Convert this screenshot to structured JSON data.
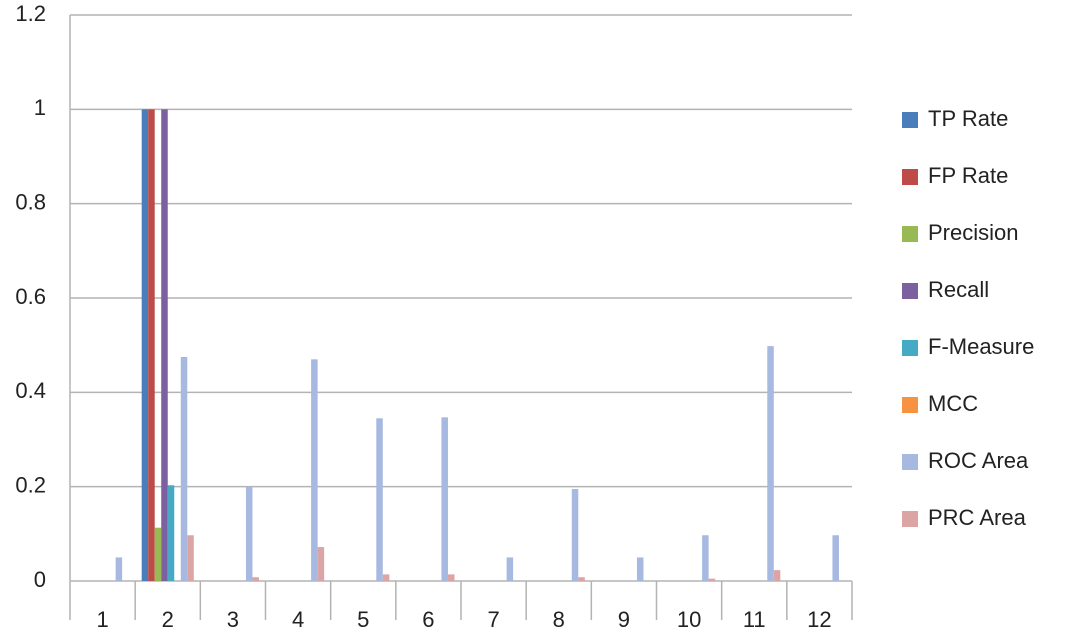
{
  "chart_data": {
    "type": "bar",
    "categories": [
      "1",
      "2",
      "3",
      "4",
      "5",
      "6",
      "7",
      "8",
      "9",
      "10",
      "11",
      "12"
    ],
    "series": [
      {
        "name": "TP Rate",
        "color": "#4a7ebb",
        "values": [
          0,
          1,
          0,
          0,
          0,
          0,
          0,
          0,
          0,
          0,
          0,
          0
        ]
      },
      {
        "name": "FP Rate",
        "color": "#be4b48",
        "values": [
          0,
          1,
          0,
          0,
          0,
          0,
          0,
          0,
          0,
          0,
          0,
          0
        ]
      },
      {
        "name": "Precision",
        "color": "#98b954",
        "values": [
          0,
          0.113,
          0,
          0,
          0,
          0,
          0,
          0,
          0,
          0,
          0,
          0
        ]
      },
      {
        "name": "Recall",
        "color": "#7d60a0",
        "values": [
          0,
          1,
          0,
          0,
          0,
          0,
          0,
          0,
          0,
          0,
          0,
          0
        ]
      },
      {
        "name": "F-Measure",
        "color": "#46aac5",
        "values": [
          0,
          0.203,
          0,
          0,
          0,
          0,
          0,
          0,
          0,
          0,
          0,
          0
        ]
      },
      {
        "name": "MCC",
        "color": "#f69240",
        "values": [
          0,
          0,
          0,
          0,
          0,
          0,
          0,
          0,
          0,
          0,
          0,
          0
        ]
      },
      {
        "name": "ROC Area",
        "color": "#a7b9e0",
        "values": [
          0.05,
          0.475,
          0.2,
          0.47,
          0.345,
          0.347,
          0.05,
          0.195,
          0.05,
          0.097,
          0.498,
          0.097
        ]
      },
      {
        "name": "PRC Area",
        "color": "#dba5a5",
        "values": [
          0,
          0.097,
          0.008,
          0.072,
          0.014,
          0.014,
          0,
          0.008,
          0,
          0.005,
          0.023,
          0
        ]
      }
    ],
    "ylim": [
      0,
      1.2
    ],
    "yticks": [
      0,
      0.2,
      0.4,
      0.6,
      0.8,
      1,
      1.2
    ],
    "grid": true,
    "legend": "right"
  }
}
